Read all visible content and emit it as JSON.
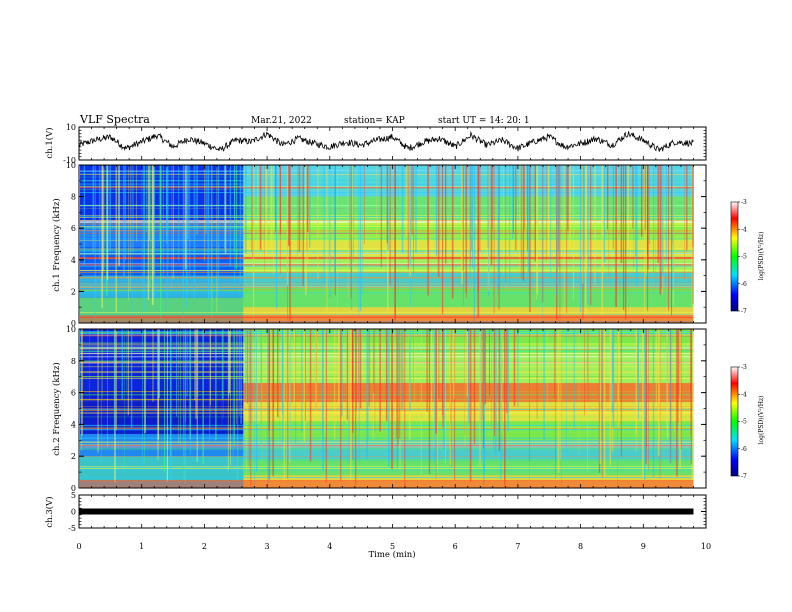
{
  "header": {
    "title": "VLF Spectra",
    "date": "Mar.21, 2022",
    "station": "station= KAP",
    "start": "start  UT =   14: 20: 1"
  },
  "chart_data": [
    {
      "type": "line",
      "panel": "ch1-waveform",
      "ylabel": "ch.1(V)",
      "ylim": [
        -10,
        10
      ],
      "yticks": [
        "10",
        "-10"
      ],
      "xlim": [
        0,
        10
      ],
      "x": [
        0.0,
        0.25,
        0.5,
        0.75,
        1.0,
        1.25,
        1.5,
        1.75,
        2.0,
        2.25,
        2.5,
        2.75,
        3.0,
        3.25,
        3.5,
        3.75,
        4.0,
        4.25,
        4.5,
        4.75,
        5.0,
        5.25,
        5.5,
        5.75,
        6.0,
        6.25,
        6.5,
        6.75,
        7.0,
        7.25,
        7.5,
        7.75,
        8.0,
        8.25,
        8.5,
        8.75,
        9.0,
        9.25,
        9.5,
        9.8
      ],
      "y": [
        -1,
        2,
        4,
        -3,
        1,
        5,
        -2,
        3,
        0,
        -4,
        2,
        1,
        6,
        -1,
        3,
        0,
        -2,
        1,
        -1,
        2,
        4,
        -3,
        1,
        3,
        -2,
        5,
        -1,
        2,
        -3,
        1,
        4,
        -2,
        0,
        3,
        -1,
        6,
        2,
        -4,
        1,
        0
      ]
    },
    {
      "type": "heatmap",
      "panel": "ch1-spectrogram",
      "ylabel": "ch.1 Frequency (kHz)",
      "ylim": [
        0,
        10
      ],
      "yticks": [
        "0",
        "2",
        "4",
        "6",
        "8",
        "10"
      ],
      "xlim": [
        0,
        10
      ],
      "colorbar": {
        "label": "log(PSD)(V²/Hz)",
        "range": [
          -7,
          -3
        ],
        "ticks": [
          "-3",
          "-4",
          "-5",
          "-6",
          "-7"
        ]
      }
    },
    {
      "type": "heatmap",
      "panel": "ch2-spectrogram",
      "ylabel": "ch.2 Frequency (kHz)",
      "ylim": [
        0,
        10
      ],
      "yticks": [
        "0",
        "2",
        "4",
        "6",
        "8",
        "10"
      ],
      "xlim": [
        0,
        10
      ],
      "colorbar": {
        "label": "log(PSD)(V²/Hz)",
        "range": [
          -7,
          -3
        ],
        "ticks": [
          "-3",
          "-4",
          "-5",
          "-6",
          "-7"
        ]
      }
    },
    {
      "type": "line",
      "panel": "ch3-waveform",
      "ylabel": "ch.3(V)",
      "ylim": [
        -5,
        5
      ],
      "yticks": [
        "5",
        "0",
        "-5"
      ],
      "xlim": [
        0,
        10
      ],
      "x": [
        0,
        9.8
      ],
      "y": [
        0,
        0
      ]
    }
  ],
  "xaxis": {
    "label": "Time (min)",
    "ticks": [
      "0",
      "1",
      "2",
      "3",
      "4",
      "5",
      "6",
      "7",
      "8",
      "9",
      "10"
    ]
  },
  "colors": {
    "frame": "#000000",
    "background": "#ffffff"
  }
}
